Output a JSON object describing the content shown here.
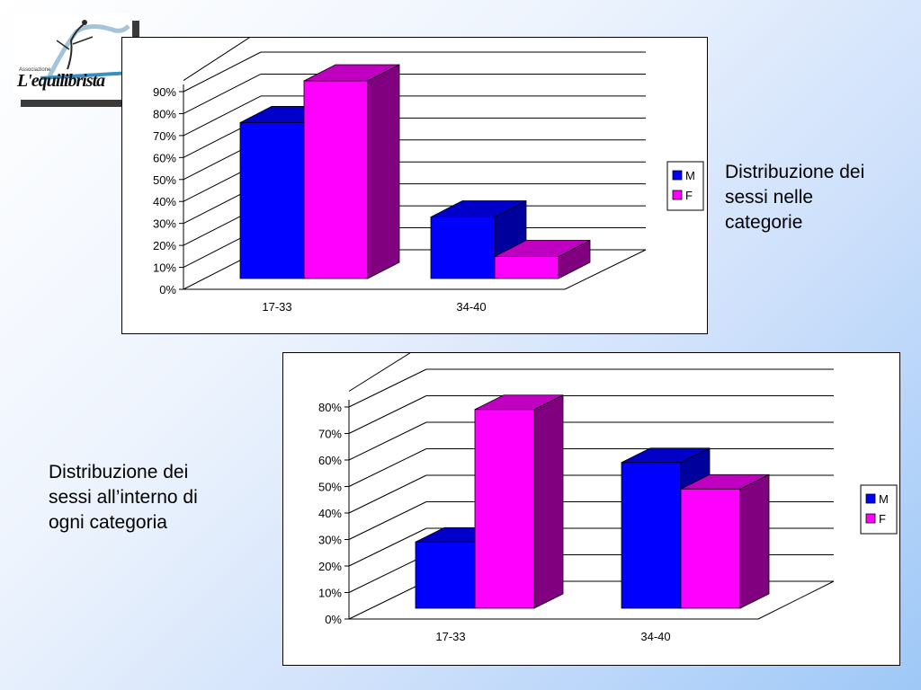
{
  "logo": {
    "small_text": "Associazione",
    "main_text": "L'equilibrista"
  },
  "captions": {
    "chart1": "Distribuzione dei\nsessi nelle\ncategorie",
    "chart2": "Distribuzione dei\nsessi all’interno di\nogni categoria"
  },
  "colors": {
    "M_front": "#0000FF",
    "M_side": "#00009C",
    "M_top": "#0000C8",
    "F_front": "#FF00FF",
    "F_side": "#800080",
    "F_top": "#C000C0"
  },
  "chart_data": [
    {
      "type": "bar",
      "title": "",
      "categories": [
        "17-33",
        "34-40"
      ],
      "series": [
        {
          "name": "M",
          "values": [
            0.71,
            0.28
          ]
        },
        {
          "name": "F",
          "values": [
            0.9,
            0.1
          ]
        }
      ],
      "y_ticks": [
        "0%",
        "10%",
        "20%",
        "30%",
        "40%",
        "50%",
        "60%",
        "70%",
        "80%",
        "90%"
      ],
      "ylim": [
        0,
        1.0
      ],
      "ymax_tick": 0.9,
      "legend": "right",
      "grid": true
    },
    {
      "type": "bar",
      "title": "",
      "categories": [
        "17-33",
        "34-40"
      ],
      "series": [
        {
          "name": "M",
          "values": [
            0.25,
            0.55
          ]
        },
        {
          "name": "F",
          "values": [
            0.75,
            0.45
          ]
        }
      ],
      "y_ticks": [
        "0%",
        "10%",
        "20%",
        "30%",
        "40%",
        "50%",
        "60%",
        "70%",
        "80%"
      ],
      "ylim": [
        0,
        0.9
      ],
      "ymax_tick": 0.8,
      "legend": "right",
      "grid": true
    }
  ]
}
